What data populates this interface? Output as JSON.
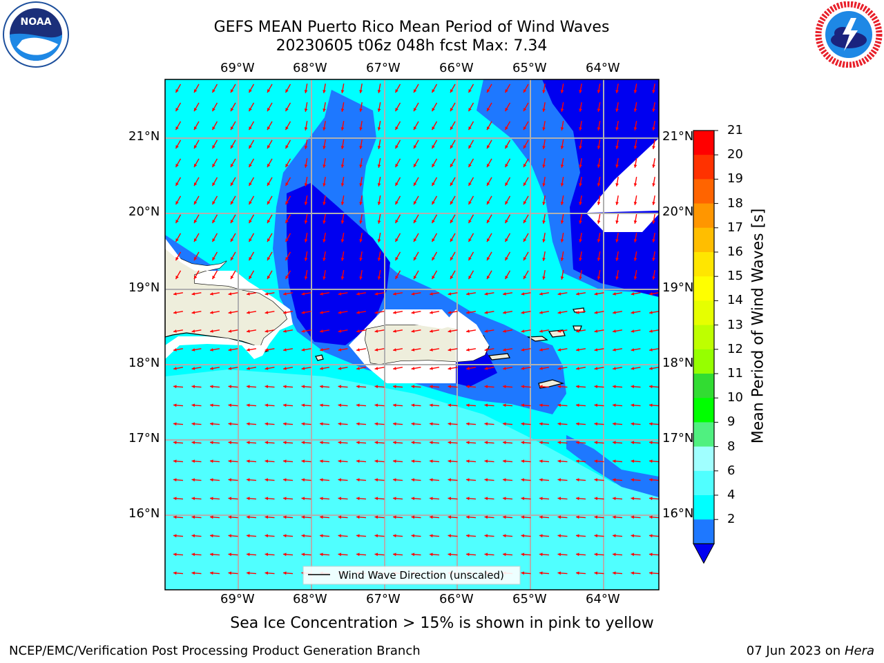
{
  "header": {
    "title_line1": "GEFS MEAN Puerto Rico Mean Period of Wind Waves",
    "title_line2": "20230605 t06z 048h fcst   Max: 7.34"
  },
  "logos": {
    "left": {
      "icon": "noaa-logo-icon",
      "text": "NOAA"
    },
    "right": {
      "icon": "national-weather-service-logo-icon",
      "text": "NATIONAL WEATHER SERVICE"
    }
  },
  "map": {
    "lon_labels": [
      "69°W",
      "68°W",
      "67°W",
      "66°W",
      "65°W",
      "64°W"
    ],
    "lat_labels": [
      "21°N",
      "20°N",
      "19°N",
      "18°N",
      "17°N",
      "16°N"
    ],
    "legend_label": "Wind Wave Direction (unscaled)",
    "colors": {
      "band_2_4": "#1e78ff",
      "band_below_2": "#0000f0",
      "band_4_6": "#00ffff",
      "band_6_8": "#50ffff",
      "land": "#eeeedc",
      "arrows": "#ff0000",
      "grid": "#b0b0b0"
    }
  },
  "colorbar": {
    "title": "Mean Period of Wind Waves [s]",
    "tick_labels": [
      "21",
      "20",
      "19",
      "18",
      "17",
      "16",
      "15",
      "14",
      "13",
      "12",
      "11",
      "10",
      "9",
      "8",
      "6",
      "4",
      "2"
    ],
    "colors": [
      "#ff0000",
      "#ff3200",
      "#ff6400",
      "#ff9600",
      "#ffbe00",
      "#ffe600",
      "#ffff00",
      "#e6ff00",
      "#beff00",
      "#96ff00",
      "#32dc32",
      "#00ff00",
      "#50f080",
      "#a0ffff",
      "#50ffff",
      "#00ffff",
      "#1e78ff",
      "#0000f0"
    ]
  },
  "footer": {
    "note": "Sea Ice Concentration > 15% is shown in pink to yellow",
    "left": "NCEP/EMC/Verification Post Processing Product Generation Branch",
    "right_date": "07 Jun 2023 on",
    "right_host": "Hera"
  }
}
